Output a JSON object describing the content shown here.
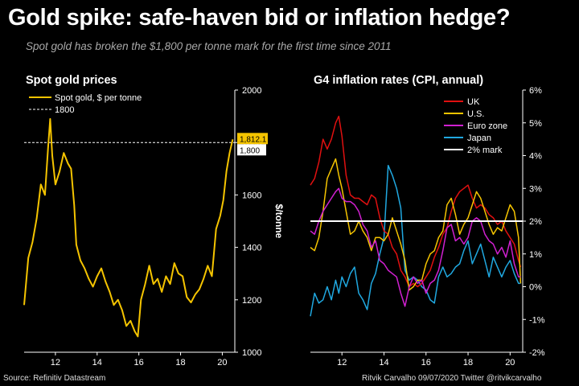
{
  "header": {
    "title": "Gold spike: safe-haven bid or inflation hedge?",
    "subtitle": "Spot gold has broken the $1,800 per tonne mark for the first time since 2011"
  },
  "footer": {
    "source": "Source: Refinitiv Datastream",
    "credit": "Ritvik Carvalho 09/07/2020 Twitter @ritvikcarvalho"
  },
  "colors": {
    "background": "#000000",
    "gold": "#f5c400",
    "uk": "#e01010",
    "us": "#f5c400",
    "euro": "#d020d0",
    "japan": "#20a8e0",
    "mark": "#ffffff"
  },
  "chart_data": [
    {
      "type": "line",
      "title": "Spot gold prices",
      "ylabel": "$/tonne",
      "ylim": [
        1000,
        2000
      ],
      "xlim": [
        10.5,
        20.6
      ],
      "yticks": [
        "1000",
        "1200",
        "1400",
        "1600",
        "1800",
        "2000"
      ],
      "xticks": [
        "12",
        "14",
        "16",
        "18",
        "20"
      ],
      "legend": [
        "Spot gold, $ per tonne",
        "1800"
      ],
      "reference_line": 1800,
      "annotations": [
        "1,812.1",
        "1,800"
      ],
      "series": [
        {
          "name": "Spot gold, $ per tonne",
          "x": [
            10.5,
            10.7,
            10.9,
            11.1,
            11.3,
            11.5,
            11.65,
            11.75,
            11.85,
            12.0,
            12.2,
            12.4,
            12.6,
            12.75,
            12.9,
            13.0,
            13.2,
            13.4,
            13.6,
            13.8,
            14.0,
            14.2,
            14.4,
            14.6,
            14.8,
            15.0,
            15.2,
            15.4,
            15.6,
            15.8,
            15.95,
            16.1,
            16.3,
            16.5,
            16.7,
            16.9,
            17.1,
            17.3,
            17.5,
            17.7,
            17.9,
            18.1,
            18.3,
            18.5,
            18.7,
            18.9,
            19.1,
            19.3,
            19.5,
            19.7,
            19.9,
            20.05,
            20.2,
            20.35,
            20.5
          ],
          "values": [
            1180,
            1360,
            1420,
            1510,
            1640,
            1600,
            1780,
            1890,
            1750,
            1640,
            1690,
            1760,
            1720,
            1700,
            1560,
            1410,
            1350,
            1320,
            1280,
            1250,
            1290,
            1320,
            1270,
            1230,
            1180,
            1200,
            1160,
            1100,
            1120,
            1080,
            1060,
            1200,
            1260,
            1330,
            1260,
            1280,
            1230,
            1290,
            1260,
            1340,
            1300,
            1290,
            1210,
            1190,
            1220,
            1240,
            1280,
            1330,
            1290,
            1470,
            1520,
            1580,
            1690,
            1760,
            1812
          ]
        }
      ]
    },
    {
      "type": "line",
      "title": "G4 inflation rates (CPI, annual)",
      "ylim": [
        -2,
        6
      ],
      "xlim": [
        10.5,
        20.6
      ],
      "yticks": [
        "-2%",
        "-1%",
        "0%",
        "1%",
        "2%",
        "3%",
        "4%",
        "5%",
        "6%"
      ],
      "xticks": [
        "12",
        "14",
        "16",
        "18",
        "20"
      ],
      "legend_position": "top-right",
      "series": [
        {
          "name": "UK",
          "x": [
            10.5,
            10.7,
            10.9,
            11.1,
            11.3,
            11.5,
            11.7,
            11.85,
            12.0,
            12.2,
            12.4,
            12.6,
            12.8,
            13.0,
            13.2,
            13.4,
            13.6,
            13.8,
            14.0,
            14.2,
            14.4,
            14.6,
            14.8,
            15.0,
            15.2,
            15.4,
            15.6,
            15.8,
            16.0,
            16.2,
            16.4,
            16.6,
            16.8,
            17.0,
            17.2,
            17.4,
            17.6,
            17.8,
            18.0,
            18.2,
            18.4,
            18.6,
            18.8,
            19.0,
            19.2,
            19.4,
            19.6,
            19.8,
            20.0,
            20.2,
            20.4,
            20.5
          ],
          "values": [
            3.1,
            3.3,
            3.8,
            4.5,
            4.2,
            4.5,
            5.0,
            5.2,
            4.6,
            3.4,
            2.8,
            2.7,
            2.7,
            2.6,
            2.5,
            2.8,
            2.7,
            2.1,
            1.7,
            1.6,
            1.2,
            1.0,
            0.5,
            0.3,
            0.0,
            0.1,
            0.0,
            0.1,
            0.3,
            0.5,
            0.9,
            1.2,
            1.6,
            1.8,
            2.3,
            2.7,
            2.9,
            3.0,
            3.1,
            2.7,
            2.4,
            2.5,
            2.4,
            2.2,
            2.1,
            1.9,
            2.0,
            1.7,
            1.5,
            1.3,
            0.8,
            0.6
          ]
        },
        {
          "name": "U.S.",
          "x": [
            10.5,
            10.7,
            10.9,
            11.1,
            11.3,
            11.5,
            11.7,
            11.85,
            12.0,
            12.2,
            12.4,
            12.6,
            12.8,
            13.0,
            13.2,
            13.4,
            13.6,
            13.8,
            14.0,
            14.2,
            14.4,
            14.6,
            14.8,
            15.0,
            15.2,
            15.4,
            15.6,
            15.8,
            16.0,
            16.2,
            16.4,
            16.6,
            16.8,
            17.0,
            17.2,
            17.4,
            17.6,
            17.8,
            18.0,
            18.2,
            18.4,
            18.6,
            18.8,
            19.0,
            19.2,
            19.4,
            19.6,
            19.8,
            20.0,
            20.2,
            20.4,
            20.5
          ],
          "values": [
            1.2,
            1.1,
            1.5,
            2.3,
            3.3,
            3.6,
            3.9,
            3.4,
            3.0,
            2.3,
            1.6,
            1.7,
            2.0,
            1.7,
            1.5,
            1.1,
            1.5,
            1.5,
            1.4,
            1.6,
            2.1,
            1.7,
            1.3,
            0.8,
            -0.1,
            0.0,
            0.2,
            0.2,
            0.7,
            1.0,
            1.1,
            1.5,
            1.7,
            2.5,
            2.7,
            2.2,
            1.6,
            1.9,
            2.1,
            2.5,
            2.9,
            2.7,
            2.3,
            1.9,
            1.6,
            1.8,
            1.7,
            2.1,
            2.5,
            2.3,
            1.5,
            0.1
          ]
        },
        {
          "name": "Euro zone",
          "x": [
            10.5,
            10.7,
            10.9,
            11.1,
            11.3,
            11.5,
            11.7,
            11.85,
            12.0,
            12.2,
            12.4,
            12.6,
            12.8,
            13.0,
            13.2,
            13.4,
            13.6,
            13.8,
            14.0,
            14.2,
            14.4,
            14.6,
            14.8,
            15.0,
            15.2,
            15.4,
            15.6,
            15.8,
            16.0,
            16.2,
            16.4,
            16.6,
            16.8,
            17.0,
            17.2,
            17.4,
            17.6,
            17.8,
            18.0,
            18.2,
            18.4,
            18.6,
            18.8,
            19.0,
            19.2,
            19.4,
            19.6,
            19.8,
            20.0,
            20.2,
            20.4,
            20.5
          ],
          "values": [
            1.7,
            1.6,
            2.0,
            2.3,
            2.5,
            2.7,
            2.9,
            3.0,
            2.7,
            2.6,
            2.6,
            2.5,
            2.3,
            1.9,
            1.7,
            1.2,
            1.4,
            0.8,
            0.7,
            0.5,
            0.4,
            0.3,
            -0.2,
            -0.6,
            0.0,
            0.3,
            0.1,
            0.2,
            -0.2,
            0.1,
            0.2,
            0.5,
            1.1,
            1.8,
            1.9,
            1.4,
            1.5,
            1.3,
            1.5,
            2.0,
            2.1,
            2.0,
            1.6,
            1.4,
            1.3,
            1.0,
            1.2,
            0.9,
            1.4,
            0.7,
            0.3,
            0.3
          ]
        },
        {
          "name": "Japan",
          "x": [
            10.5,
            10.7,
            10.9,
            11.1,
            11.3,
            11.5,
            11.7,
            11.85,
            12.0,
            12.2,
            12.4,
            12.6,
            12.8,
            13.0,
            13.2,
            13.4,
            13.6,
            13.8,
            14.0,
            14.2,
            14.4,
            14.6,
            14.8,
            15.0,
            15.2,
            15.4,
            15.6,
            15.8,
            16.0,
            16.2,
            16.4,
            16.6,
            16.8,
            17.0,
            17.2,
            17.4,
            17.6,
            17.8,
            18.0,
            18.2,
            18.4,
            18.6,
            18.8,
            19.0,
            19.2,
            19.4,
            19.6,
            19.8,
            20.0,
            20.2,
            20.4,
            20.5
          ],
          "values": [
            -0.9,
            -0.2,
            -0.5,
            -0.4,
            0.0,
            -0.4,
            0.2,
            -0.2,
            0.3,
            0.0,
            0.4,
            0.6,
            -0.2,
            -0.4,
            -0.7,
            0.1,
            0.4,
            1.0,
            1.5,
            3.7,
            3.4,
            3.0,
            2.4,
            0.5,
            0.2,
            0.3,
            0.2,
            0.0,
            -0.1,
            -0.4,
            -0.5,
            0.3,
            0.6,
            0.3,
            0.4,
            0.6,
            0.7,
            1.1,
            1.4,
            0.7,
            1.0,
            1.3,
            0.8,
            0.3,
            0.9,
            0.6,
            0.3,
            0.6,
            0.8,
            0.4,
            0.1,
            0.1
          ]
        },
        {
          "name": "2% mark",
          "x": [
            10.5,
            20.6
          ],
          "values": [
            2,
            2
          ]
        }
      ]
    }
  ]
}
